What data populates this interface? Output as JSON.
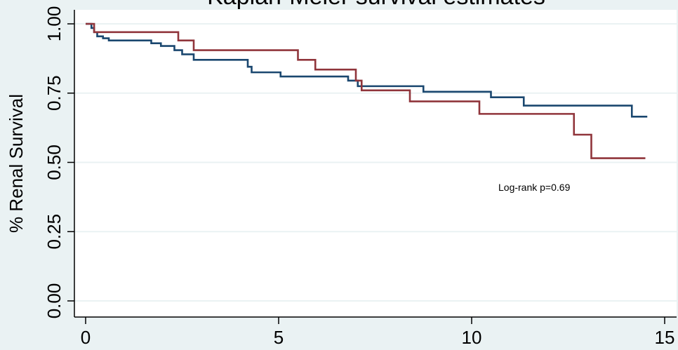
{
  "chart_data": {
    "type": "line",
    "title": "Kaplan-Meier survival estimates",
    "ylabel": "% Renal Survival",
    "xlabel": "",
    "xlim": [
      0,
      15
    ],
    "ylim": [
      0,
      1
    ],
    "xticks": [
      0,
      5,
      10,
      15
    ],
    "xtick_labels": [
      "0",
      "5",
      "10",
      "15"
    ],
    "yticks": [
      0,
      0.25,
      0.5,
      0.75,
      1.0
    ],
    "ytick_labels": [
      "0.00",
      "0.25",
      "0.50",
      "0.75",
      "1.00"
    ],
    "grid": true,
    "annotation": "Log-rank p=0.69",
    "series": [
      {
        "color": "#1a476f",
        "step": true,
        "x": [
          0,
          0.15,
          0.22,
          0.3,
          0.45,
          0.6,
          1.7,
          1.95,
          2.3,
          2.5,
          2.8,
          4.2,
          4.3,
          5.05,
          6.8,
          7.05,
          8.75,
          10.5,
          11.35,
          14.15,
          14.55
        ],
        "y": [
          1.0,
          0.985,
          0.97,
          0.955,
          0.948,
          0.94,
          0.93,
          0.92,
          0.905,
          0.89,
          0.87,
          0.845,
          0.825,
          0.81,
          0.795,
          0.775,
          0.755,
          0.735,
          0.705,
          0.665,
          0.665
        ]
      },
      {
        "color": "#90353b",
        "step": true,
        "x": [
          0,
          0.22,
          2.4,
          2.8,
          5.5,
          5.95,
          7.0,
          7.15,
          8.4,
          10.2,
          12.65,
          13.1,
          14.5
        ],
        "y": [
          1.0,
          0.97,
          0.94,
          0.905,
          0.87,
          0.835,
          0.795,
          0.76,
          0.72,
          0.675,
          0.6,
          0.515,
          0.515
        ]
      }
    ]
  }
}
